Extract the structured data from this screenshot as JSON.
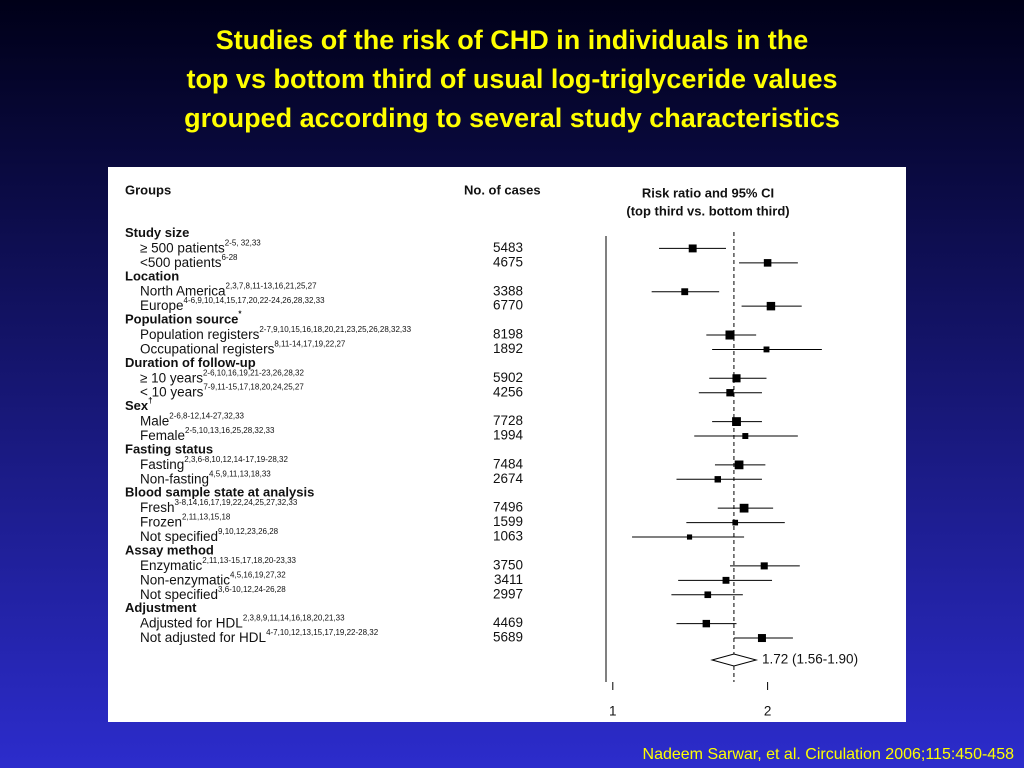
{
  "title_lines": [
    "Studies of the risk of CHD in individuals in the",
    "top vs bottom third of usual log-triglyceride values",
    "grouped according to several study characteristics"
  ],
  "citation": "Nadeem Sarwar, et al. Circulation 2006;115:450-458",
  "chart_data": {
    "type": "forest",
    "headers": {
      "groups": "Groups",
      "cases": "No. of cases",
      "ci": "Risk ratio and 95% CI",
      "ci_sub": "(top third vs. bottom third)"
    },
    "xscale": "log",
    "xlim": [
      0.97,
      3.7
    ],
    "xticks": [
      1,
      2
    ],
    "groups": [
      {
        "name": "Study size",
        "items": [
          {
            "label": "≥ 500 patients",
            "refs": "2-5, 32,33",
            "cases": 5483,
            "rr": 1.43,
            "lo": 1.23,
            "hi": 1.66
          },
          {
            "label": "<500 patients",
            "refs": "6-28",
            "cases": 4675,
            "rr": 2.0,
            "lo": 1.76,
            "hi": 2.29
          }
        ]
      },
      {
        "name": "Location",
        "items": [
          {
            "label": "North America",
            "refs": "2,3,7,8,11-13,16,21,25,27",
            "cases": 3388,
            "rr": 1.38,
            "lo": 1.19,
            "hi": 1.61
          },
          {
            "label": "Europe",
            "refs": "4-6,9,10,14,15,17,20,22-24,26,28,32,33",
            "cases": 6770,
            "rr": 2.03,
            "lo": 1.78,
            "hi": 2.33
          }
        ]
      },
      {
        "name": "Population source",
        "sup": "*",
        "items": [
          {
            "label": "Population registers",
            "refs": "2-7,9,10,15,16,18,20,21,23,25,26,28,32,33",
            "cases": 8198,
            "rr": 1.69,
            "lo": 1.52,
            "hi": 1.9
          },
          {
            "label": "Occupational registers",
            "refs": "8,11-14,17,19,22,27",
            "cases": 1892,
            "rr": 1.99,
            "lo": 1.56,
            "hi": 2.55
          }
        ]
      },
      {
        "name": "Duration of follow-up",
        "items": [
          {
            "label": "≥ 10 years",
            "refs": "2-6,10,16,19,21-23,26,28,32",
            "cases": 5902,
            "rr": 1.74,
            "lo": 1.54,
            "hi": 1.99
          },
          {
            "label": "< 10 years",
            "refs": "7-9,11-15,17,18,20,24,25,27",
            "cases": 4256,
            "rr": 1.69,
            "lo": 1.47,
            "hi": 1.95
          }
        ]
      },
      {
        "name": "Sex",
        "sup": "†",
        "items": [
          {
            "label": "Male",
            "refs": "2-6,8-12,14-27,32,33",
            "cases": 7728,
            "rr": 1.74,
            "lo": 1.56,
            "hi": 1.95
          },
          {
            "label": "Female",
            "refs": "2-5,10,13,16,25,28,32,33",
            "cases": 1994,
            "rr": 1.81,
            "lo": 1.44,
            "hi": 2.29
          }
        ]
      },
      {
        "name": "Fasting status",
        "items": [
          {
            "label": "Fasting",
            "refs": "2,3,6-8,10,12,14-17,19-28,32",
            "cases": 7484,
            "rr": 1.76,
            "lo": 1.58,
            "hi": 1.98
          },
          {
            "label": "Non-fasting",
            "refs": "4,5,9,11,13,18,33",
            "cases": 2674,
            "rr": 1.6,
            "lo": 1.33,
            "hi": 1.95
          }
        ]
      },
      {
        "name": "Blood sample state at analysis",
        "items": [
          {
            "label": "Fresh",
            "refs": "3-8,14,16,17,19,22,24,25,27,32,33",
            "cases": 7496,
            "rr": 1.8,
            "lo": 1.6,
            "hi": 2.05
          },
          {
            "label": "Frozen",
            "refs": "2,11,13,15,18",
            "cases": 1599,
            "rr": 1.73,
            "lo": 1.39,
            "hi": 2.16
          },
          {
            "label": "Not specified",
            "refs": "9,10,12,23,26,28",
            "cases": 1063,
            "rr": 1.41,
            "lo": 1.09,
            "hi": 1.8
          }
        ]
      },
      {
        "name": "Assay method",
        "items": [
          {
            "label": "Enzymatic",
            "refs": "2,11,13-15,17,18,20-23,33",
            "cases": 3750,
            "rr": 1.97,
            "lo": 1.69,
            "hi": 2.31
          },
          {
            "label": "Non-enzymatic",
            "refs": "4,5,16,19,27,32",
            "cases": 3411,
            "rr": 1.66,
            "lo": 1.34,
            "hi": 2.04
          },
          {
            "label": "Not specified",
            "refs": "3,6-10,12,24-26,28",
            "cases": 2997,
            "rr": 1.53,
            "lo": 1.3,
            "hi": 1.79
          }
        ]
      },
      {
        "name": "Adjustment",
        "items": [
          {
            "label": "Adjusted for HDL",
            "refs": "2,3,8,9,11,14,16,18,20,21,33",
            "cases": 4469,
            "rr": 1.52,
            "lo": 1.33,
            "hi": 1.74
          },
          {
            "label": "Not adjusted for HDL",
            "refs": "4-7,10,12,13,15,17,19,22-28,32",
            "cases": 5689,
            "rr": 1.95,
            "lo": 1.72,
            "hi": 2.24
          }
        ]
      }
    ],
    "overall": {
      "rr": 1.72,
      "lo": 1.56,
      "hi": 1.9,
      "label": "1.72 (1.56-1.90)"
    }
  }
}
